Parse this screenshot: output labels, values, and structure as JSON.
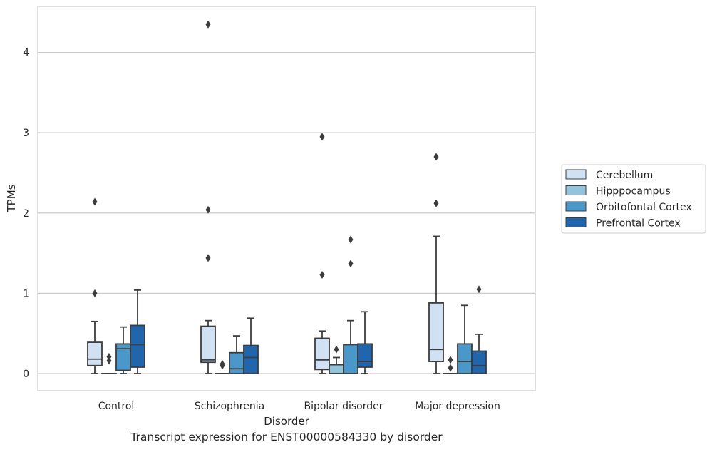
{
  "caption": "Transcript expression for ENST00000584330 by disorder",
  "chart_data": {
    "type": "box",
    "xlabel": "Disorder",
    "ylabel": "TPMs",
    "ylim": [
      -0.2,
      4.55
    ],
    "yticks": [
      0,
      1,
      2,
      3,
      4
    ],
    "grid": "horizontal",
    "legend_position": "right",
    "categories": [
      "Control",
      "Schizophrenia",
      "Bipolar disorder",
      "Major depression"
    ],
    "colors": [
      "#cfe1f2",
      "#93c4de",
      "#4a98c9",
      "#2166ac"
    ],
    "series": [
      {
        "name": "Cerebellum",
        "boxes": [
          {
            "whisker_low": 0.0,
            "q1": 0.1,
            "median": 0.18,
            "q3": 0.39,
            "whisker_high": 0.65,
            "outliers": [
              1.0,
              2.14
            ]
          },
          {
            "whisker_low": 0.0,
            "q1": 0.14,
            "median": 0.17,
            "q3": 0.59,
            "whisker_high": 0.66,
            "outliers": [
              1.44,
              2.04,
              4.35
            ]
          },
          {
            "whisker_low": 0.0,
            "q1": 0.05,
            "median": 0.17,
            "q3": 0.44,
            "whisker_high": 0.53,
            "outliers": [
              1.23,
              2.95
            ]
          },
          {
            "whisker_low": 0.0,
            "q1": 0.15,
            "median": 0.3,
            "q3": 0.88,
            "whisker_high": 1.71,
            "outliers": [
              2.12,
              2.7
            ]
          }
        ]
      },
      {
        "name": "Hipppocampus",
        "boxes": [
          {
            "whisker_low": 0.0,
            "q1": 0.0,
            "median": 0.0,
            "q3": 0.0,
            "whisker_high": 0.0,
            "outliers": [
              0.16,
              0.21
            ]
          },
          {
            "whisker_low": 0.0,
            "q1": 0.0,
            "median": 0.0,
            "q3": 0.0,
            "whisker_high": 0.0,
            "outliers": [
              0.1,
              0.12
            ]
          },
          {
            "whisker_low": 0.0,
            "q1": 0.0,
            "median": 0.0,
            "q3": 0.11,
            "whisker_high": 0.2,
            "outliers": [
              0.3
            ]
          },
          {
            "whisker_low": 0.0,
            "q1": 0.0,
            "median": 0.0,
            "q3": 0.0,
            "whisker_high": 0.0,
            "outliers": [
              0.07,
              0.17
            ]
          }
        ]
      },
      {
        "name": "Orbitofontal Cortex",
        "boxes": [
          {
            "whisker_low": 0.0,
            "q1": 0.04,
            "median": 0.31,
            "q3": 0.37,
            "whisker_high": 0.58,
            "outliers": []
          },
          {
            "whisker_low": 0.0,
            "q1": 0.0,
            "median": 0.06,
            "q3": 0.26,
            "whisker_high": 0.47,
            "outliers": []
          },
          {
            "whisker_low": 0.0,
            "q1": 0.0,
            "median": 0.0,
            "q3": 0.36,
            "whisker_high": 0.66,
            "outliers": [
              1.37,
              1.67
            ]
          },
          {
            "whisker_low": 0.0,
            "q1": 0.0,
            "median": 0.15,
            "q3": 0.37,
            "whisker_high": 0.85,
            "outliers": []
          }
        ]
      },
      {
        "name": "Prefrontal Cortex",
        "boxes": [
          {
            "whisker_low": 0.0,
            "q1": 0.08,
            "median": 0.36,
            "q3": 0.6,
            "whisker_high": 1.04,
            "outliers": []
          },
          {
            "whisker_low": 0.0,
            "q1": 0.0,
            "median": 0.2,
            "q3": 0.35,
            "whisker_high": 0.69,
            "outliers": []
          },
          {
            "whisker_low": 0.0,
            "q1": 0.08,
            "median": 0.15,
            "q3": 0.37,
            "whisker_high": 0.77,
            "outliers": []
          },
          {
            "whisker_low": 0.0,
            "q1": 0.0,
            "median": 0.1,
            "q3": 0.28,
            "whisker_high": 0.49,
            "outliers": [
              1.05
            ]
          }
        ]
      }
    ]
  }
}
